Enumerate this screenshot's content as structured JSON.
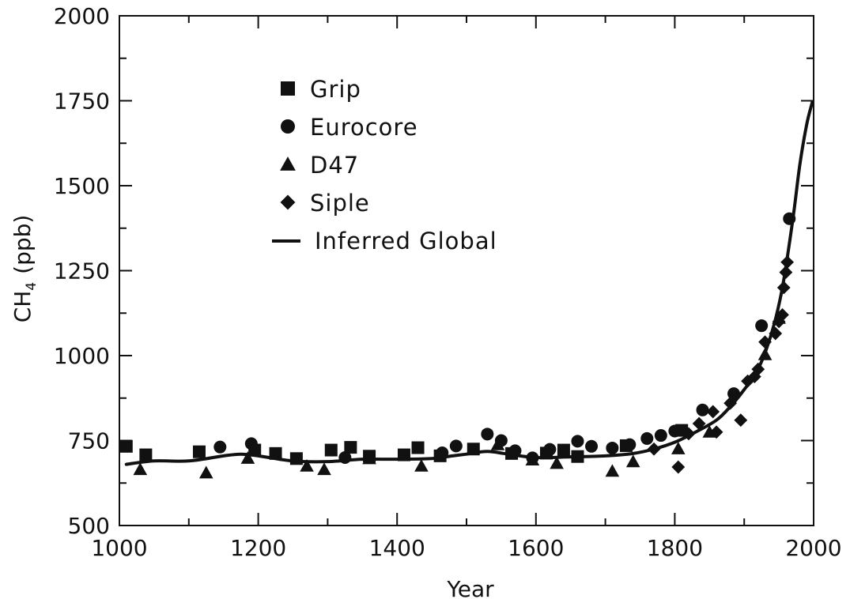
{
  "chart_data": {
    "type": "scatter",
    "xlabel": "Year",
    "ylabel_main": "CH",
    "ylabel_sub": "4",
    "ylabel_unit": "(ppb)",
    "xlim": [
      1000,
      2000
    ],
    "ylim": [
      500,
      2000
    ],
    "x_ticks": [
      1000,
      1200,
      1400,
      1600,
      1800,
      2000
    ],
    "y_ticks": [
      500,
      750,
      1000,
      1250,
      1500,
      1750,
      2000
    ],
    "grid": false,
    "legend_position": "top-left",
    "series": [
      {
        "name": "Grip",
        "marker": "square",
        "points": [
          [
            1010,
            733
          ],
          [
            1038,
            708
          ],
          [
            1115,
            717
          ],
          [
            1195,
            722
          ],
          [
            1225,
            712
          ],
          [
            1255,
            697
          ],
          [
            1305,
            722
          ],
          [
            1333,
            730
          ],
          [
            1360,
            704
          ],
          [
            1410,
            708
          ],
          [
            1430,
            729
          ],
          [
            1462,
            705
          ],
          [
            1510,
            725
          ],
          [
            1565,
            712
          ],
          [
            1615,
            713
          ],
          [
            1640,
            722
          ],
          [
            1660,
            703
          ],
          [
            1730,
            735
          ],
          [
            1810,
            780
          ]
        ]
      },
      {
        "name": "Eurocore",
        "marker": "circle",
        "points": [
          [
            1145,
            731
          ],
          [
            1190,
            741
          ],
          [
            1325,
            700
          ],
          [
            1465,
            714
          ],
          [
            1485,
            734
          ],
          [
            1530,
            769
          ],
          [
            1550,
            750
          ],
          [
            1570,
            720
          ],
          [
            1595,
            699
          ],
          [
            1620,
            724
          ],
          [
            1660,
            748
          ],
          [
            1680,
            733
          ],
          [
            1710,
            728
          ],
          [
            1735,
            738
          ],
          [
            1760,
            756
          ],
          [
            1780,
            765
          ],
          [
            1800,
            778
          ],
          [
            1840,
            840
          ],
          [
            1885,
            888
          ],
          [
            1925,
            1088
          ],
          [
            1965,
            1403
          ]
        ]
      },
      {
        "name": "D47",
        "marker": "triangle",
        "points": [
          [
            1030,
            665
          ],
          [
            1125,
            655
          ],
          [
            1185,
            698
          ],
          [
            1270,
            675
          ],
          [
            1295,
            665
          ],
          [
            1360,
            697
          ],
          [
            1435,
            675
          ],
          [
            1545,
            738
          ],
          [
            1595,
            693
          ],
          [
            1630,
            683
          ],
          [
            1710,
            660
          ],
          [
            1740,
            688
          ],
          [
            1805,
            726
          ],
          [
            1850,
            775
          ],
          [
            1930,
            1003
          ],
          [
            1950,
            1110
          ]
        ]
      },
      {
        "name": "Siple",
        "marker": "diamond",
        "points": [
          [
            1770,
            725
          ],
          [
            1805,
            672
          ],
          [
            1820,
            770
          ],
          [
            1835,
            800
          ],
          [
            1855,
            835
          ],
          [
            1860,
            775
          ],
          [
            1880,
            860
          ],
          [
            1895,
            810
          ],
          [
            1905,
            925
          ],
          [
            1915,
            938
          ],
          [
            1920,
            960
          ],
          [
            1930,
            1040
          ],
          [
            1945,
            1065
          ],
          [
            1950,
            1100
          ],
          [
            1955,
            1120
          ],
          [
            1957,
            1200
          ],
          [
            1960,
            1245
          ],
          [
            1962,
            1275
          ]
        ]
      },
      {
        "name": "Inferred Global",
        "marker": "line",
        "points": [
          [
            1010,
            680
          ],
          [
            1050,
            690
          ],
          [
            1100,
            690
          ],
          [
            1150,
            705
          ],
          [
            1175,
            710
          ],
          [
            1200,
            705
          ],
          [
            1250,
            690
          ],
          [
            1300,
            688
          ],
          [
            1350,
            695
          ],
          [
            1400,
            695
          ],
          [
            1450,
            697
          ],
          [
            1480,
            705
          ],
          [
            1500,
            710
          ],
          [
            1530,
            718
          ],
          [
            1560,
            710
          ],
          [
            1600,
            700
          ],
          [
            1650,
            702
          ],
          [
            1700,
            705
          ],
          [
            1740,
            712
          ],
          [
            1770,
            725
          ],
          [
            1800,
            745
          ],
          [
            1830,
            775
          ],
          [
            1860,
            810
          ],
          [
            1880,
            850
          ],
          [
            1900,
            900
          ],
          [
            1920,
            960
          ],
          [
            1940,
            1070
          ],
          [
            1955,
            1200
          ],
          [
            1970,
            1400
          ],
          [
            1980,
            1560
          ],
          [
            1990,
            1680
          ],
          [
            1998,
            1745
          ]
        ]
      }
    ]
  }
}
